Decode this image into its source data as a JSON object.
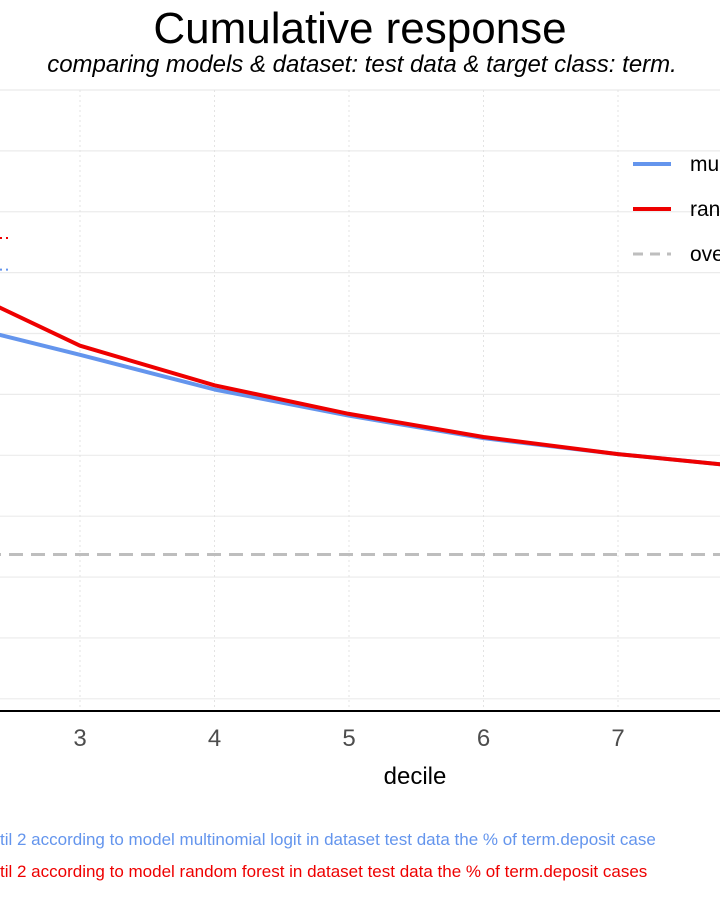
{
  "chart_data": {
    "type": "line",
    "title": "Cumulative response",
    "subtitle": "comparing models & dataset: test data & target class: term.",
    "xlabel": "decile",
    "ylabel": "",
    "x_ticks": [
      "3",
      "4",
      "5",
      "6",
      "7"
    ],
    "xlim": [
      1.1,
      7.75
    ],
    "ylim": [
      -0.02,
      1.0
    ],
    "grid": true,
    "legend_position": "right",
    "series": [
      {
        "name": "mu",
        "color": "#6495ED",
        "style": "solid",
        "x": [
          2,
          3,
          4,
          5,
          6,
          7,
          8
        ],
        "y": [
          0.62,
          0.565,
          0.508,
          0.465,
          0.428,
          0.402,
          0.38
        ]
      },
      {
        "name": "ran",
        "color": "#EE0000",
        "style": "solid",
        "x": [
          2,
          3,
          4,
          5,
          6,
          7,
          8
        ],
        "y": [
          0.685,
          0.58,
          0.515,
          0.468,
          0.43,
          0.402,
          0.38
        ]
      },
      {
        "name": "ove",
        "color": "#BEBEBE",
        "style": "dashed",
        "x": [
          1,
          8
        ],
        "y": [
          0.237,
          0.237
        ]
      }
    ],
    "annotations": [
      {
        "text": "til 2 according to model multinomial logit in dataset test data the % of term.deposit case",
        "color": "#6495ED"
      },
      {
        "text": "til 2 according to model random forest in dataset test data the % of term.deposit cases",
        "color": "#EE0000"
      }
    ]
  }
}
